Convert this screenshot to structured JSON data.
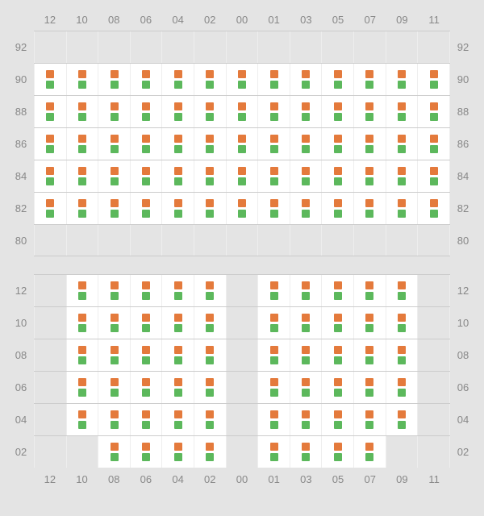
{
  "colors": {
    "marker_top": "#e47a3c",
    "marker_bottom": "#5cb85c",
    "slot_filled_bg": "#ffffff",
    "slot_empty_bg": "#e4e4e4",
    "label_color": "#888888",
    "border_color": "#cccccc",
    "cell_border": "#eeeeee"
  },
  "label_fontsize": 13,
  "marker_size": 10,
  "columns": [
    "12",
    "10",
    "08",
    "06",
    "04",
    "02",
    "00",
    "01",
    "03",
    "05",
    "07",
    "09",
    "11"
  ],
  "racks": [
    {
      "show_top_labels": true,
      "show_bottom_labels": false,
      "rows": [
        {
          "label": "92",
          "filled": [
            0,
            0,
            0,
            0,
            0,
            0,
            0,
            0,
            0,
            0,
            0,
            0,
            0
          ]
        },
        {
          "label": "90",
          "filled": [
            1,
            1,
            1,
            1,
            1,
            1,
            1,
            1,
            1,
            1,
            1,
            1,
            1
          ]
        },
        {
          "label": "88",
          "filled": [
            1,
            1,
            1,
            1,
            1,
            1,
            1,
            1,
            1,
            1,
            1,
            1,
            1
          ]
        },
        {
          "label": "86",
          "filled": [
            1,
            1,
            1,
            1,
            1,
            1,
            1,
            1,
            1,
            1,
            1,
            1,
            1
          ]
        },
        {
          "label": "84",
          "filled": [
            1,
            1,
            1,
            1,
            1,
            1,
            1,
            1,
            1,
            1,
            1,
            1,
            1
          ]
        },
        {
          "label": "82",
          "filled": [
            1,
            1,
            1,
            1,
            1,
            1,
            1,
            1,
            1,
            1,
            1,
            1,
            1
          ]
        },
        {
          "label": "80",
          "filled": [
            0,
            0,
            0,
            0,
            0,
            0,
            0,
            0,
            0,
            0,
            0,
            0,
            0
          ]
        }
      ]
    },
    {
      "show_top_labels": false,
      "show_bottom_labels": true,
      "rows": [
        {
          "label": "12",
          "filled": [
            0,
            1,
            1,
            1,
            1,
            1,
            0,
            1,
            1,
            1,
            1,
            1,
            0
          ]
        },
        {
          "label": "10",
          "filled": [
            0,
            1,
            1,
            1,
            1,
            1,
            0,
            1,
            1,
            1,
            1,
            1,
            0
          ]
        },
        {
          "label": "08",
          "filled": [
            0,
            1,
            1,
            1,
            1,
            1,
            0,
            1,
            1,
            1,
            1,
            1,
            0
          ]
        },
        {
          "label": "06",
          "filled": [
            0,
            1,
            1,
            1,
            1,
            1,
            0,
            1,
            1,
            1,
            1,
            1,
            0
          ]
        },
        {
          "label": "04",
          "filled": [
            0,
            1,
            1,
            1,
            1,
            1,
            0,
            1,
            1,
            1,
            1,
            1,
            0
          ]
        },
        {
          "label": "02",
          "filled": [
            0,
            0,
            1,
            1,
            1,
            1,
            0,
            1,
            1,
            1,
            1,
            0,
            0
          ]
        }
      ]
    }
  ]
}
